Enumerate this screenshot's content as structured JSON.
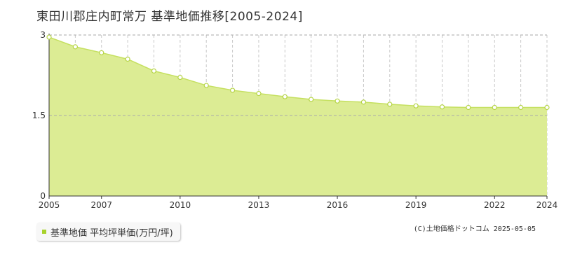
{
  "title": "東田川郡庄内町常万 基準地価推移[2005-2024]",
  "legend_label": "基準地価 平均坪単価(万円/坪)",
  "copyright": "(C)土地価格ドットコム 2025-05-05",
  "colors": {
    "fill": "#dcec94",
    "line": "#c5e060",
    "marker_stroke": "#b5d445",
    "grid": "#c8c8c8",
    "legend_swatch": "#a8d22c"
  },
  "chart_data": {
    "type": "area",
    "title": "",
    "xlabel": "",
    "ylabel": "",
    "ylim": [
      0,
      3
    ],
    "y_ticks": [
      0,
      1.5,
      3
    ],
    "y_tick_labels": [
      "0",
      "1.5",
      "3"
    ],
    "x_tick_years": [
      2005,
      2007,
      2010,
      2013,
      2016,
      2019,
      2022,
      2024
    ],
    "grid": true,
    "legend_position": "bottom-left",
    "series": [
      {
        "name": "基準地価 平均坪単価(万円/坪)",
        "x": [
          2005,
          2006,
          2007,
          2008,
          2009,
          2010,
          2011,
          2012,
          2013,
          2014,
          2015,
          2016,
          2017,
          2018,
          2019,
          2020,
          2021,
          2022,
          2023,
          2024
        ],
        "values": [
          2.96,
          2.78,
          2.67,
          2.55,
          2.33,
          2.21,
          2.06,
          1.97,
          1.91,
          1.85,
          1.8,
          1.77,
          1.75,
          1.71,
          1.68,
          1.66,
          1.65,
          1.65,
          1.65,
          1.65
        ]
      }
    ]
  }
}
